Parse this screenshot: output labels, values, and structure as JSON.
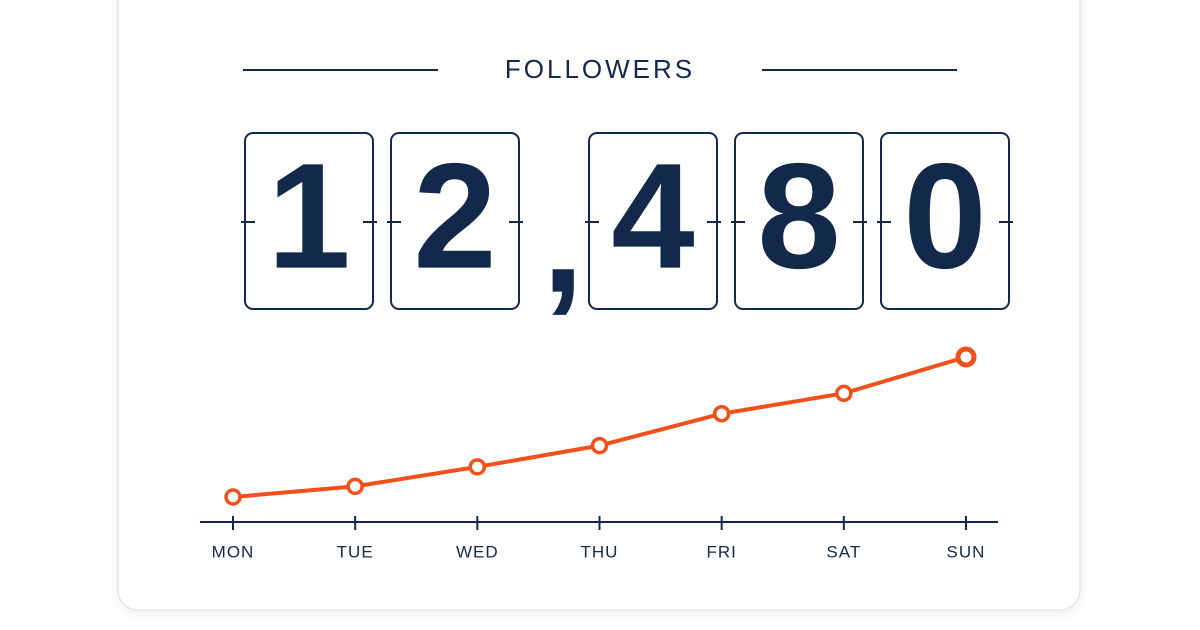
{
  "header": {
    "title": "FOLLOWERS"
  },
  "counter": {
    "digits": [
      "1",
      "2",
      ",",
      "4",
      "8",
      "0"
    ]
  },
  "chart_data": {
    "type": "line",
    "categories": [
      "MON",
      "TUE",
      "WED",
      "THU",
      "FRI",
      "SAT",
      "SUN"
    ],
    "values": [
      10900,
      11020,
      11240,
      11480,
      11840,
      12070,
      12480
    ],
    "color": "#f0501a"
  }
}
